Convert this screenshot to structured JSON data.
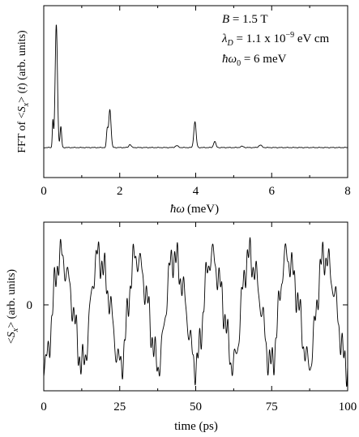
{
  "chart_data": [
    {
      "type": "line",
      "panel": "top",
      "xlabel": "ħω (meV)",
      "ylabel": "FFT of <S_x>(t) (arb. units)",
      "xlim": [
        0,
        8
      ],
      "ylim": [
        0,
        1
      ],
      "xticks": [
        "0",
        "2",
        "4",
        "6",
        "8"
      ],
      "grid": false,
      "annotations": [
        "B = 1.5 T",
        "λ_D = 1.1 x 10^-9 eV cm",
        "ħω_0 = 6 meV"
      ],
      "baseline": 0.07,
      "peaks": [
        {
          "x": 0.33,
          "y": 1.0,
          "w": 0.03
        },
        {
          "x": 0.24,
          "y": 0.22,
          "w": 0.015
        },
        {
          "x": 0.45,
          "y": 0.17,
          "w": 0.02
        },
        {
          "x": 1.74,
          "y": 0.31,
          "w": 0.03
        },
        {
          "x": 1.67,
          "y": 0.14,
          "w": 0.02
        },
        {
          "x": 2.27,
          "y": 0.025,
          "w": 0.03
        },
        {
          "x": 3.5,
          "y": 0.015,
          "w": 0.04
        },
        {
          "x": 3.98,
          "y": 0.21,
          "w": 0.03
        },
        {
          "x": 4.5,
          "y": 0.05,
          "w": 0.03
        },
        {
          "x": 5.22,
          "y": 0.01,
          "w": 0.04
        },
        {
          "x": 5.7,
          "y": 0.02,
          "w": 0.04
        }
      ]
    },
    {
      "type": "line",
      "panel": "bottom",
      "xlabel": "time (ps)",
      "ylabel": "<S_x> (arb. units)",
      "xlim": [
        0,
        100
      ],
      "ylim": [
        -1.25,
        1.25
      ],
      "xticks": [
        "0",
        "25",
        "50",
        "75",
        "100"
      ],
      "yticks": [
        "0"
      ],
      "grid": false,
      "period_ps": 12.4,
      "components": [
        {
          "amp": 0.78,
          "period_ps": 12.4,
          "phase_ps": 3.1
        },
        {
          "amp": 0.17,
          "period_ps": 2.38,
          "phase_ps": 0.4
        },
        {
          "amp": 0.1,
          "period_ps": 1.04,
          "phase_ps": 0.1
        },
        {
          "amp": 0.06,
          "period_ps": 0.92,
          "phase_ps": 0.5
        }
      ]
    }
  ],
  "labels": {
    "top_xlabel_sym": "ħω",
    "top_xlabel_unit": "(meV)",
    "top_ylabel_pre": "FFT of <",
    "top_ylabel_S": "S",
    "top_ylabel_x": "x",
    "top_ylabel_post": "> (",
    "top_ylabel_t": "t",
    "top_ylabel_end": ")  (arb. units)",
    "ann_B": "B",
    "ann_B_val": " = 1.5 T",
    "ann_lambda": "λ",
    "ann_lambda_sub": "D",
    "ann_lambda_val": " = 1.1 x 10",
    "ann_lambda_exp": "−9",
    "ann_lambda_unit": " eV cm",
    "ann_hw": "ħω",
    "ann_hw_sub": "0",
    "ann_hw_val": " = 6 meV",
    "bot_ylabel_pre": "<",
    "bot_ylabel_S": "S",
    "bot_ylabel_x": "x",
    "bot_ylabel_post": ">  (arb. units)",
    "bot_ytick": "0",
    "bot_xlabel": "time (ps)"
  }
}
